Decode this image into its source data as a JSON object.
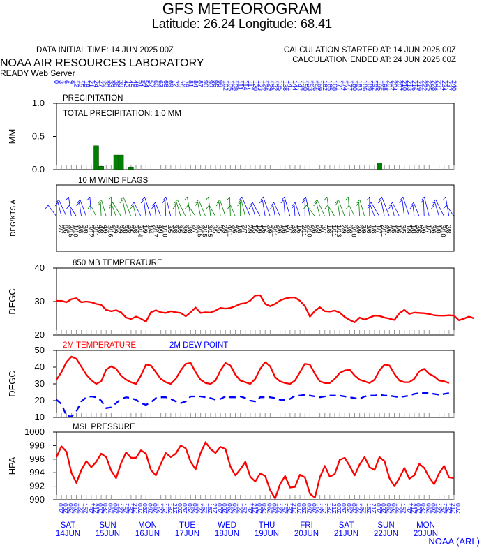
{
  "header": {
    "title": "GFS METEOROGRAM",
    "subtitle": "Latitude: 26.24 Longitude:  68.41",
    "init_time": "DATA INITIAL TIME: 14 JUN 2025 00Z",
    "calc_started": "CALCULATION STARTED AT: 14 JUN 2025 00Z",
    "calc_ended": "CALCULATION ENDED AT: 24 JUN 2025 00Z",
    "lab": "NOAA AIR RESOURCES LABORATORY",
    "server": "READY Web Server",
    "footer": "NOAA (ARL)"
  },
  "colors": {
    "temp": "#ff0000",
    "dew": "#0000ff",
    "precip": "#008000",
    "axis_labels": "#0000ff",
    "wind_a": "#0000ff",
    "wind_b": "#008000"
  },
  "chart_data": [
    {
      "type": "bar",
      "title": "PRECIPITATION",
      "annotation": "TOTAL PRECIPITATION:   1.0 MM",
      "ylabel": "MM",
      "ylim": [
        0,
        1.0
      ],
      "yticks": [
        "0.0",
        "0.5",
        "1.0"
      ],
      "x_hours": [
        24,
        27,
        36,
        39,
        45,
        195
      ],
      "values": [
        0.36,
        0.05,
        0.22,
        0.22,
        0.04,
        0.1
      ]
    },
    {
      "type": "line",
      "title": "10 M  WIND FLAGS",
      "ylabel": "DEG/KTS  A"
    },
    {
      "type": "line",
      "title": "850 MB  TEMPERATURE",
      "ylabel": "DEGC",
      "ylim": [
        20,
        40
      ],
      "yticks": [
        "20",
        "30",
        "40"
      ],
      "series": [
        {
          "name": "",
          "color": "#ff0000",
          "values": [
            30.2,
            30.2,
            29.8,
            30.7,
            31.0,
            29.8,
            30.0,
            29.8,
            29.3,
            29.0,
            27.5,
            27.1,
            27.4,
            26.8,
            25.2,
            24.8,
            25.5,
            24.9,
            24.0,
            26.8,
            27.4,
            26.8,
            26.6,
            27.1,
            26.8,
            26.6,
            25.6,
            26.8,
            28.2,
            26.6,
            26.8,
            26.7,
            27.3,
            28.1,
            27.9,
            28.1,
            28.6,
            29.3,
            29.5,
            30.3,
            31.8,
            31.9,
            29.3,
            28.6,
            29.3,
            30.3,
            30.9,
            31.2,
            31.2,
            30.2,
            28.6,
            25.5,
            27.2,
            28.3,
            27.1,
            27.0,
            27.3,
            26.7,
            25.4,
            24.5,
            23.8,
            25.2,
            24.6,
            25.2,
            25.8,
            25.7,
            25.2,
            24.9,
            24.5,
            26.5,
            27.5,
            26.3,
            26.7,
            26.6,
            26.5,
            26.3,
            25.9,
            25.8,
            25.8,
            25.9,
            25.8,
            24.4,
            24.9,
            25.5,
            25.0
          ]
        }
      ]
    },
    {
      "type": "line",
      "title": "",
      "ylabel": "DEGC",
      "ylim": [
        10,
        50
      ],
      "yticks": [
        "10",
        "20",
        "30",
        "40",
        "50"
      ],
      "series": [
        {
          "name": "2M TEMPERATURE",
          "color": "#ff0000",
          "values": [
            32.5,
            37.0,
            43.0,
            46.3,
            45.0,
            40.3,
            35.5,
            32.2,
            30.0,
            31.5,
            38.5,
            40.5,
            39.0,
            35.0,
            32.5,
            31.0,
            30.0,
            35.0,
            41.5,
            41.0,
            37.0,
            33.0,
            31.0,
            30.0,
            33.0,
            38.0,
            42.0,
            42.5,
            37.0,
            32.5,
            30.5,
            30.0,
            32.0,
            38.0,
            42.5,
            41.0,
            35.5,
            32.0,
            31.0,
            30.0,
            33.0,
            39.0,
            43.0,
            40.5,
            34.0,
            31.5,
            30.5,
            30.0,
            32.0,
            37.0,
            42.0,
            41.5,
            36.0,
            31.5,
            30.5,
            30.5,
            33.0,
            36.5,
            38.0,
            38.5,
            35.0,
            32.5,
            31.5,
            30.5,
            32.5,
            38.0,
            41.5,
            41.0,
            36.0,
            32.0,
            31.0,
            31.0,
            33.0,
            37.5,
            39.0,
            36.0,
            34.5,
            32.0,
            31.5,
            30.5
          ]
        },
        {
          "name": "2M DEW POINT",
          "color": "#0000ff",
          "values": [
            20.5,
            18.0,
            11.0,
            10.5,
            13.5,
            19.5,
            22.0,
            22.5,
            22.0,
            20.0,
            15.5,
            16.0,
            18.5,
            21.0,
            22.0,
            21.5,
            20.5,
            18.5,
            17.5,
            19.0,
            21.5,
            22.0,
            22.0,
            21.0,
            19.5,
            18.5,
            19.5,
            22.5,
            22.5,
            22.5,
            22.0,
            21.5,
            20.5,
            21.0,
            22.5,
            22.0,
            22.0,
            22.5,
            21.5,
            20.0,
            19.5,
            22.0,
            22.0,
            22.0,
            21.5,
            20.5,
            20.5,
            21.0,
            23.0,
            23.0,
            23.5,
            23.0,
            22.5,
            22.0,
            22.5,
            23.0,
            23.0,
            23.0,
            22.5,
            22.0,
            21.5,
            21.0,
            22.5,
            23.0,
            23.0,
            23.5,
            23.0,
            23.0,
            22.5,
            22.0,
            22.5,
            23.0,
            24.0,
            24.5,
            24.5,
            24.5,
            24.0,
            23.5,
            24.0,
            24.5
          ]
        }
      ]
    },
    {
      "type": "line",
      "title": "MSL PRESSURE",
      "ylabel": "HPA",
      "ylim": [
        990,
        1000
      ],
      "yticks": [
        "990",
        "992",
        "994",
        "996",
        "998",
        "1000"
      ],
      "series": [
        {
          "name": "",
          "color": "#ff0000",
          "values": [
            996.3,
            997.9,
            997.1,
            994.0,
            992.5,
            994.4,
            995.7,
            994.8,
            995.6,
            996.8,
            996.3,
            994.3,
            993.2,
            995.4,
            997.0,
            996.2,
            996.2,
            997.3,
            996.8,
            994.4,
            993.6,
            995.3,
            996.9,
            996.3,
            996.8,
            998.0,
            997.6,
            995.6,
            994.5,
            996.9,
            998.5,
            997.5,
            996.9,
            997.8,
            997.5,
            994.9,
            993.6,
            994.5,
            995.6,
            993.4,
            992.7,
            993.9,
            993.5,
            991.4,
            990.2,
            992.3,
            993.5,
            991.8,
            991.9,
            993.7,
            993.3,
            990.9,
            990.3,
            993.3,
            995.0,
            993.4,
            993.8,
            995.9,
            996.2,
            995.0,
            993.6,
            995.2,
            996.3,
            994.8,
            994.4,
            996.3,
            995.7,
            993.2,
            992.0,
            993.2,
            994.7,
            993.1,
            993.6,
            995.3,
            994.7,
            993.3,
            992.3,
            993.9,
            995.0,
            993.3,
            993.2
          ]
        }
      ]
    }
  ],
  "x_axis": {
    "hour_labels": [
      "0",
      "3",
      "6",
      "9",
      "12",
      "15",
      "18",
      "21",
      "24",
      "27",
      "30",
      "33",
      "36",
      "39",
      "42",
      "45",
      "48",
      "51",
      "54",
      "57",
      "60",
      "63",
      "66",
      "69",
      "72",
      "75",
      "78",
      "81",
      "84",
      "87",
      "90",
      "93",
      "96",
      "99",
      "102",
      "105",
      "108",
      "111",
      "114",
      "117",
      "120",
      "123",
      "126",
      "129",
      "132",
      "135",
      "138",
      "141",
      "144",
      "147",
      "150",
      "153",
      "156",
      "159",
      "162",
      "165",
      "168",
      "171",
      "174",
      "177",
      "180",
      "183",
      "186",
      "189",
      "192",
      "195",
      "198",
      "201",
      "204",
      "207",
      "210",
      "213",
      "216",
      "219",
      "222",
      "225",
      "228",
      "231",
      "234",
      "237",
      "240"
    ],
    "utc_labels": [
      "03Z",
      "06Z",
      "09Z",
      "12Z",
      "15Z",
      "18Z",
      "21Z",
      "00Z"
    ],
    "days": [
      {
        "dow": "SAT",
        "date": "14JUN"
      },
      {
        "dow": "SUN",
        "date": "15JUN"
      },
      {
        "dow": "MON",
        "date": "16JUN"
      },
      {
        "dow": "TUE",
        "date": "17JUN"
      },
      {
        "dow": "WED",
        "date": "18JUN"
      },
      {
        "dow": "THU",
        "date": "19JUN"
      },
      {
        "dow": "FRI",
        "date": "20JUN"
      },
      {
        "dow": "SAT",
        "date": "21JUN"
      },
      {
        "dow": "SUN",
        "date": "22JUN"
      },
      {
        "dow": "MON",
        "date": "23JUN"
      }
    ]
  },
  "wind_labels": [
    "2/7",
    "8/6",
    "3/15",
    "1/10",
    "3/8",
    "3/8",
    "3/12",
    "3/11",
    "4/8",
    "4/9",
    "3/16",
    "2/9",
    "3/9",
    "3/8",
    "3/5",
    "3/8",
    "3/14",
    "1/9",
    "1/4",
    "2/17",
    "4/9",
    "1/10",
    "3/5",
    "3/8",
    "3/5",
    "3/9",
    "3/8",
    "2/7",
    "3/15",
    "3/15",
    "3/15",
    "3/5",
    "3/5",
    "2/9",
    "4/11",
    "2/6",
    "1/8",
    "2/7",
    "2/9",
    "1/5",
    "1/9",
    "1/6",
    "2/9",
    "3/11",
    "2/6",
    "1/6",
    "2/7",
    "3/8",
    "1/6",
    "2/11",
    "2/10",
    "2/6",
    "2/9",
    "3/7",
    "1/8",
    "1/11",
    "1/13",
    "2/9",
    "3/8",
    "3/10",
    "3/9",
    "3/9",
    "3/6",
    "1/8",
    "1/7",
    "2/11",
    "3/6",
    "1/5",
    "1/6",
    "3/5",
    "1/9",
    "1/8",
    "3/6",
    "2/9",
    "1/7",
    "3/6",
    "1/8",
    "3/10",
    "2/8"
  ]
}
